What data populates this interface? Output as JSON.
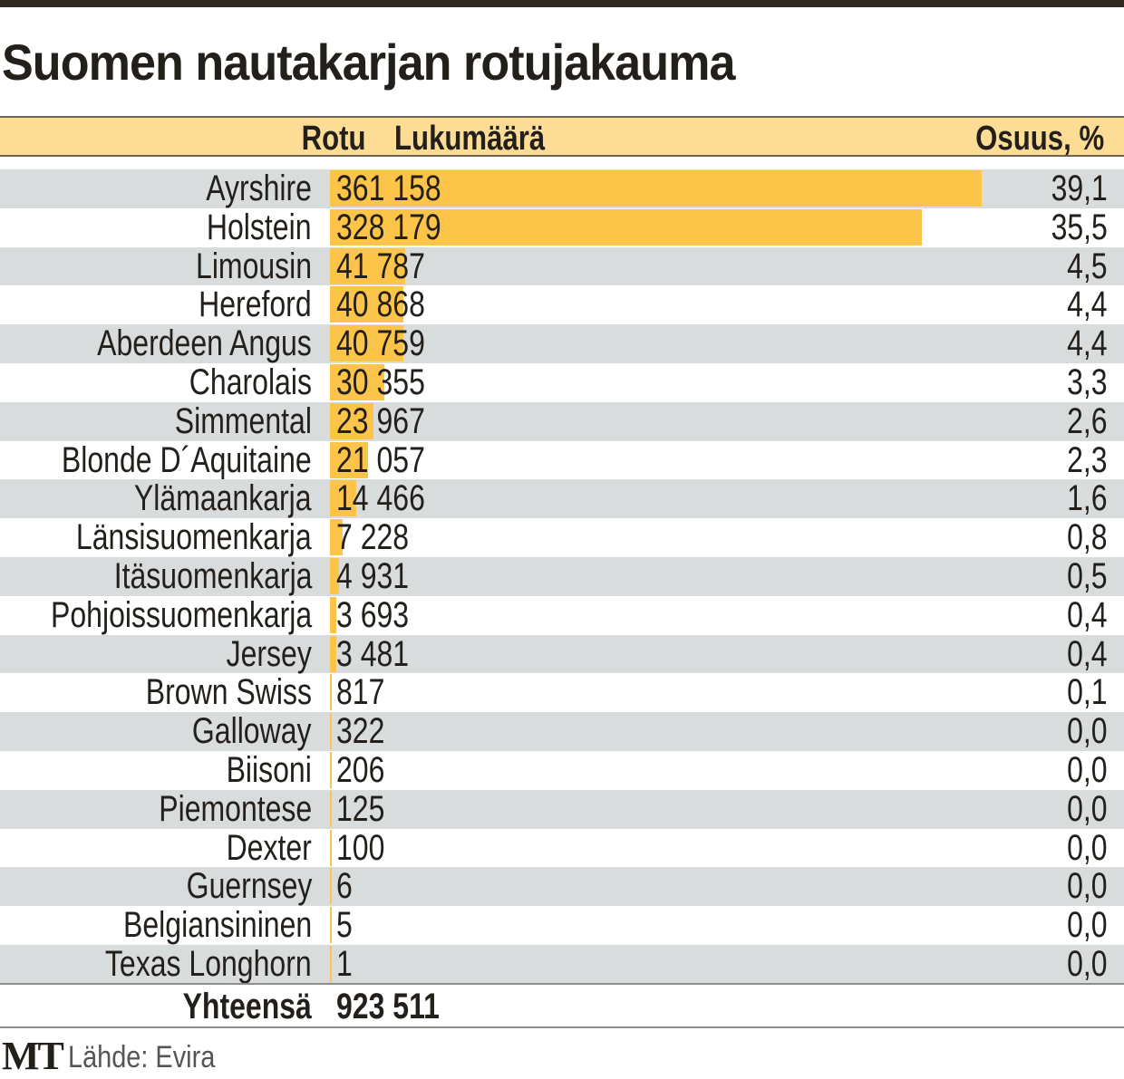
{
  "chart_data": {
    "type": "bar",
    "title": "Suomen nautakarjan rotujakauma",
    "columns": [
      "Rotu",
      "Lukumäärä",
      "Osuus, %"
    ],
    "categories": [
      "Ayrshire",
      "Holstein",
      "Limousin",
      "Hereford",
      "Aberdeen Angus",
      "Charolais",
      "Simmental",
      "Blonde D´Aquitaine",
      "Ylämaankarja",
      "Länsisuomenkarja",
      "Itäsuomenkarja",
      "Pohjoissuomenkarja",
      "Jersey",
      "Brown Swiss",
      "Galloway",
      "Biisoni",
      "Piemontese",
      "Dexter",
      "Guernsey",
      "Belgiansininen",
      "Texas Longhorn"
    ],
    "values": [
      361158,
      328179,
      41787,
      40868,
      40759,
      30355,
      23967,
      21057,
      14466,
      7228,
      4931,
      3693,
      3481,
      817,
      322,
      206,
      125,
      100,
      6,
      5,
      1
    ],
    "value_labels": [
      "361 158",
      "328 179",
      "41 787",
      "40 868",
      "40 759",
      "30 355",
      "23 967",
      "21 057",
      "14 466",
      "7 228",
      "4 931",
      "3 693",
      "3 481",
      "817",
      "322",
      "206",
      "125",
      "100",
      "6",
      "5",
      "1"
    ],
    "percent_labels": [
      "39,1",
      "35,5",
      "4,5",
      "4,4",
      "4,4",
      "3,3",
      "2,6",
      "2,3",
      "1,6",
      "0,8",
      "0,5",
      "0,4",
      "0,4",
      "0,1",
      "0,0",
      "0,0",
      "0,0",
      "0,0",
      "0,0",
      "0,0",
      "0,0"
    ],
    "total_label": "Yhteensä",
    "total_value": "923 511",
    "bar_color": "#fdc44a",
    "header_color": "#fddc96",
    "alt_row_color": "#d9dcdd"
  },
  "footer": {
    "logo": "MT",
    "source": "Lähde: Evira"
  }
}
